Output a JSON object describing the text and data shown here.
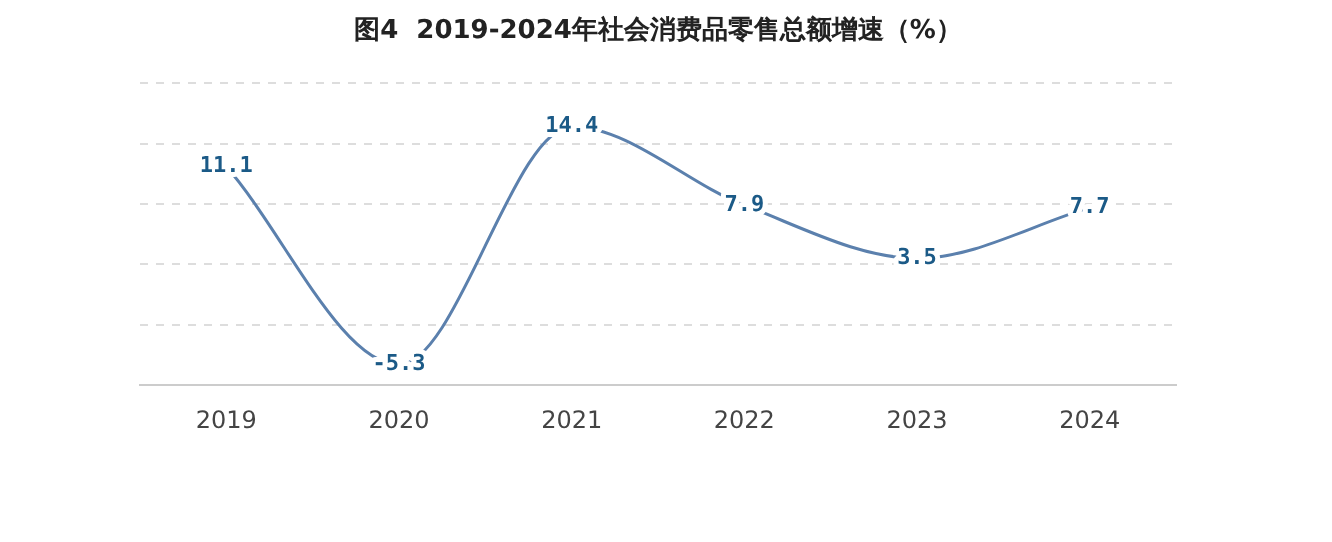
{
  "chart_data": {
    "type": "line",
    "title": "图4  2019-2024年社会消费品零售总额增速（%）",
    "categories": [
      "2019",
      "2020",
      "2021",
      "2022",
      "2023",
      "2024"
    ],
    "series": [
      {
        "color": "#5b80ad",
        "values": [
          11.1,
          -5.3,
          14.4,
          7.9,
          3.5,
          7.7
        ]
      }
    ],
    "ylim": [
      -7,
      18
    ],
    "yticks": [
      {
        "value": -2,
        "label": null
      },
      {
        "value": 3,
        "label": null
      },
      {
        "value": 8,
        "label": null
      },
      {
        "value": 13,
        "label": null
      },
      {
        "value": 18,
        "label": null
      }
    ],
    "data_labels": true,
    "grid": "y",
    "legend": false,
    "tick_labels": "x",
    "marker": "none",
    "line_style": "solid"
  }
}
